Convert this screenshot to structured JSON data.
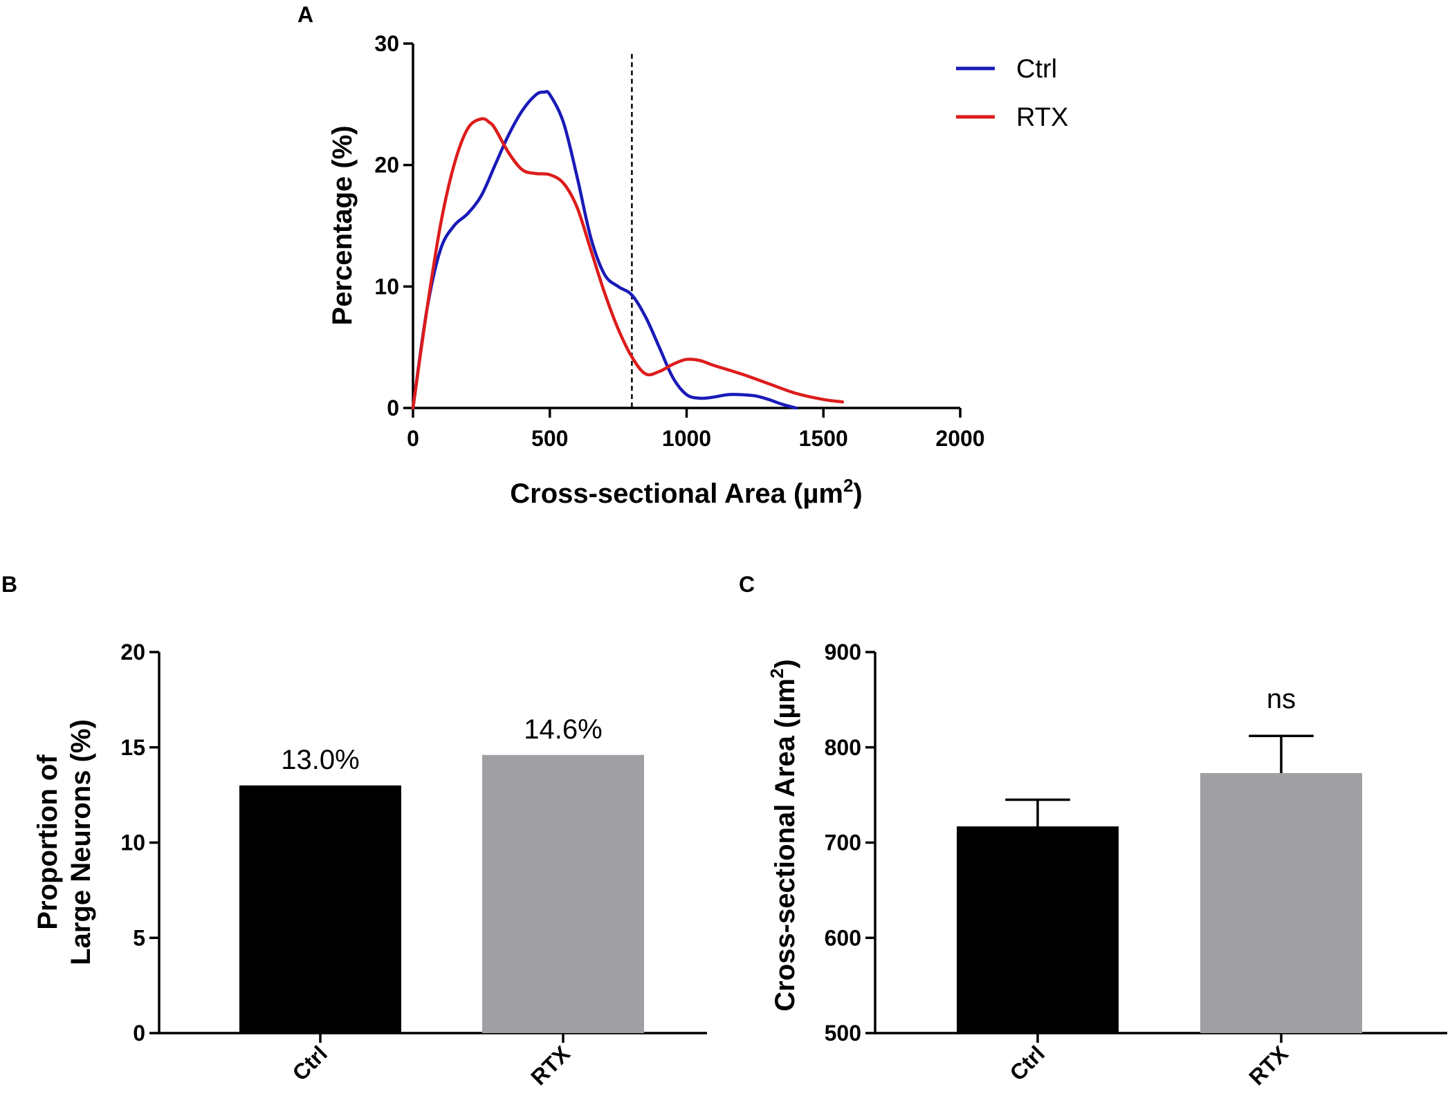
{
  "chart_data": [
    {
      "panel": "A",
      "type": "line",
      "xlabel": "Cross-sectional Area (µm",
      "xlabel_sup": "2",
      "xlabel_end": ")",
      "ylabel": "Percentage (%)",
      "xlim": [
        0,
        2000
      ],
      "ylim": [
        0,
        30
      ],
      "xticks": [
        "0",
        "500",
        "1000",
        "1500",
        "2000"
      ],
      "yticks": [
        "0",
        "10",
        "20",
        "30"
      ],
      "reference_line_x": 800,
      "legend_position": "top-right",
      "series": [
        {
          "name": "Ctrl",
          "color": "#1a1ab8",
          "x": [
            0,
            50,
            100,
            150,
            200,
            250,
            300,
            350,
            400,
            450,
            480,
            500,
            550,
            600,
            650,
            700,
            750,
            800,
            850,
            900,
            950,
            1000,
            1050,
            1100,
            1150,
            1200,
            1250,
            1300,
            1350,
            1400
          ],
          "y": [
            0,
            8,
            13,
            15,
            16,
            17.5,
            20,
            22.5,
            24.5,
            25.8,
            26,
            25.8,
            23.5,
            19,
            14,
            11,
            10,
            9.3,
            7.5,
            5,
            2.5,
            1.1,
            0.8,
            0.9,
            1.1,
            1.1,
            1.0,
            0.7,
            0.3,
            0
          ]
        },
        {
          "name": "RTX",
          "color": "#dd1c1c",
          "x": [
            0,
            50,
            100,
            150,
            200,
            250,
            280,
            300,
            350,
            400,
            450,
            500,
            550,
            600,
            650,
            700,
            750,
            800,
            850,
            900,
            950,
            1000,
            1050,
            1100,
            1200,
            1300,
            1400,
            1500,
            1570
          ],
          "y": [
            0,
            8,
            15,
            20,
            23,
            23.8,
            23.5,
            23,
            21,
            19.6,
            19.3,
            19.2,
            18.5,
            16.5,
            13,
            9.5,
            6.5,
            4.2,
            2.8,
            3.0,
            3.6,
            4.0,
            3.9,
            3.5,
            2.8,
            2.0,
            1.2,
            0.7,
            0.5
          ]
        }
      ]
    },
    {
      "panel": "B",
      "type": "bar",
      "categories": [
        "Ctrl",
        "RTX"
      ],
      "values": [
        13.0,
        14.6
      ],
      "data_labels": [
        "13.0%",
        "14.6%"
      ],
      "colors": [
        "#000000",
        "#a0a0a4"
      ],
      "ylabel_line1": "Proportion of",
      "ylabel_line2": "Large Neurons (%)",
      "ylim": [
        0,
        20
      ],
      "yticks": [
        "0",
        "5",
        "10",
        "15",
        "20"
      ]
    },
    {
      "panel": "C",
      "type": "bar",
      "categories": [
        "Ctrl",
        "RTX"
      ],
      "values": [
        717,
        773
      ],
      "errors": [
        28,
        39
      ],
      "colors": [
        "#000000",
        "#a0a0a4"
      ],
      "annotation": "ns",
      "ylabel": "Cross-sectional Area (µm",
      "ylabel_sup": "2",
      "ylabel_end": ")",
      "ylim": [
        500,
        900
      ],
      "yticks": [
        "500",
        "600",
        "700",
        "800",
        "900"
      ]
    }
  ]
}
